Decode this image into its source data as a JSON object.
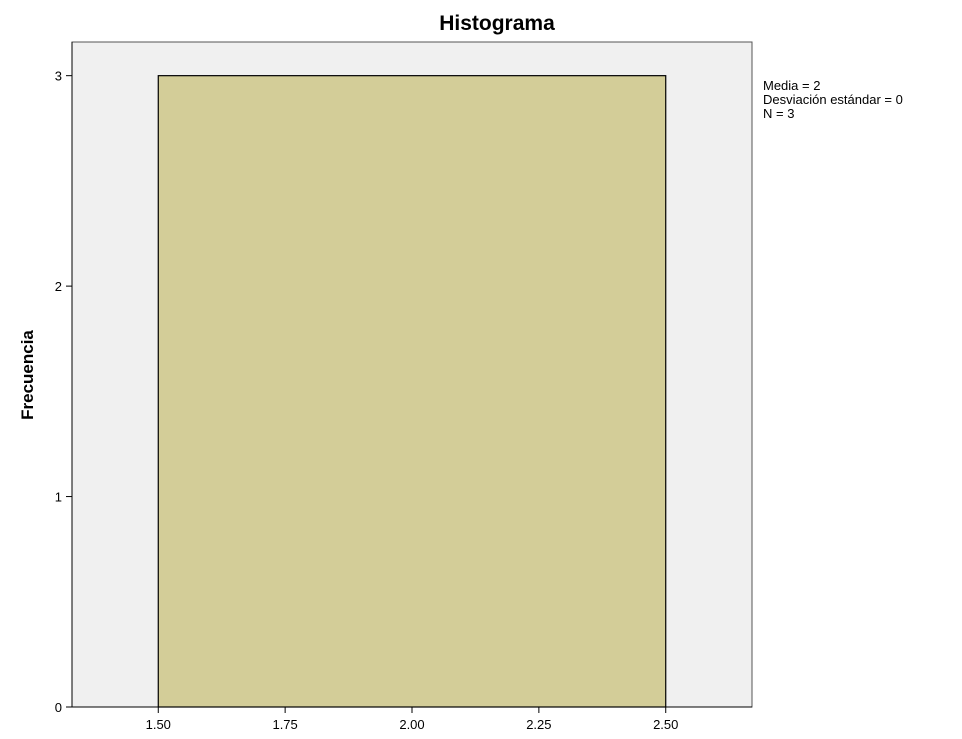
{
  "chart_data": {
    "type": "bar",
    "title": "Histograma",
    "xlabel": "",
    "ylabel": "Frecuencia",
    "bins": [
      {
        "x0": 1.5,
        "x1": 2.5,
        "count": 3
      }
    ],
    "xlim": [
      1.33,
      2.67
    ],
    "ylim": [
      0,
      3.16
    ],
    "x_ticks": [
      1.5,
      1.75,
      2.0,
      2.25,
      2.5
    ],
    "x_tick_labels": [
      "1.50",
      "1.75",
      "2.00",
      "2.25",
      "2.50"
    ],
    "y_ticks": [
      0,
      1,
      2,
      3
    ],
    "y_tick_labels": [
      "0",
      "1",
      "2",
      "3"
    ],
    "grid": false,
    "legend_position": "top-right",
    "stats": [
      "Media = 2",
      "Desviación estándar = 0",
      "N = 3"
    ],
    "colors": {
      "plot_background": "#f0f0f0",
      "bar_fill": "#d3cd98",
      "bar_stroke": "#000000",
      "frame": "#555555"
    }
  }
}
